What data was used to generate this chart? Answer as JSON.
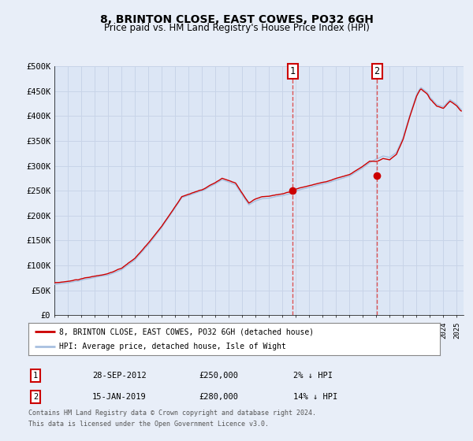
{
  "title": "8, BRINTON CLOSE, EAST COWES, PO32 6GH",
  "subtitle": "Price paid vs. HM Land Registry's House Price Index (HPI)",
  "legend_line1": "8, BRINTON CLOSE, EAST COWES, PO32 6GH (detached house)",
  "legend_line2": "HPI: Average price, detached house, Isle of Wight",
  "marker1_date": "28-SEP-2012",
  "marker1_price": 250000,
  "marker1_hpi": "2% ↓ HPI",
  "marker1_x": 2012.75,
  "marker1_y": 250000,
  "marker2_date": "15-JAN-2019",
  "marker2_price": 280000,
  "marker2_hpi": "14% ↓ HPI",
  "marker2_x": 2019.04,
  "marker2_y": 280000,
  "ylim": [
    0,
    500000
  ],
  "xlim_start": 1995.0,
  "xlim_end": 2025.5,
  "footnote_line1": "Contains HM Land Registry data © Crown copyright and database right 2024.",
  "footnote_line2": "This data is licensed under the Open Government Licence v3.0.",
  "background_color": "#e8eef8",
  "plot_bg_color": "#dce6f5",
  "grid_color": "#c8d4e8",
  "hpi_color": "#a8c0e0",
  "price_color": "#cc0000",
  "dashed_color": "#dd4444",
  "title_fontsize": 10,
  "subtitle_fontsize": 8.5,
  "hpi_key_x": [
    1995,
    1996,
    1997,
    1998,
    1999,
    2000,
    2001,
    2002,
    2003,
    2004,
    2004.5,
    2005,
    2006,
    2007,
    2007.5,
    2008.5,
    2009.5,
    2010,
    2010.5,
    2011,
    2011.5,
    2012,
    2012.5,
    2013,
    2014,
    2015,
    2016,
    2017,
    2018,
    2018.5,
    2019,
    2019.5,
    2020,
    2020.5,
    2021,
    2021.5,
    2022,
    2022.3,
    2022.8,
    2023,
    2023.5,
    2024,
    2024.5,
    2025,
    2025.3
  ],
  "hpi_key_y": [
    62000,
    65000,
    70000,
    75000,
    80000,
    90000,
    110000,
    140000,
    175000,
    215000,
    235000,
    240000,
    248000,
    262000,
    270000,
    260000,
    220000,
    228000,
    232000,
    233000,
    236000,
    238000,
    242000,
    248000,
    255000,
    262000,
    270000,
    278000,
    295000,
    305000,
    312000,
    318000,
    315000,
    325000,
    355000,
    400000,
    440000,
    455000,
    445000,
    435000,
    420000,
    415000,
    430000,
    420000,
    410000
  ],
  "prop_offset_x": [
    1995,
    1996,
    1997,
    1998,
    1999,
    2000,
    2001,
    2002,
    2003,
    2004,
    2004.5,
    2005,
    2006,
    2007,
    2007.5,
    2008.5,
    2009.5,
    2010,
    2010.5,
    2011,
    2011.5,
    2012,
    2012.5,
    2013,
    2014,
    2015,
    2016,
    2017,
    2018,
    2018.5,
    2019,
    2019.5,
    2020,
    2020.5,
    2021,
    2021.5,
    2022,
    2022.3,
    2022.8,
    2023,
    2023.5,
    2024,
    2024.5,
    2025,
    2025.3
  ],
  "prop_offset_y": [
    3000,
    3000,
    3000,
    3000,
    3000,
    3000,
    3000,
    3000,
    3000,
    3000,
    3000,
    3000,
    3000,
    3000,
    3000,
    3000,
    3000,
    3000,
    3000,
    3000,
    3000,
    3000,
    3000,
    3000,
    3000,
    3000,
    3000,
    3000,
    3000,
    3000,
    -5000,
    -5000,
    -5000,
    -5000,
    -5000,
    -5000,
    -5000,
    -5000,
    -5000,
    -5000,
    -5000,
    -5000,
    -5000,
    -5000,
    -5000
  ]
}
